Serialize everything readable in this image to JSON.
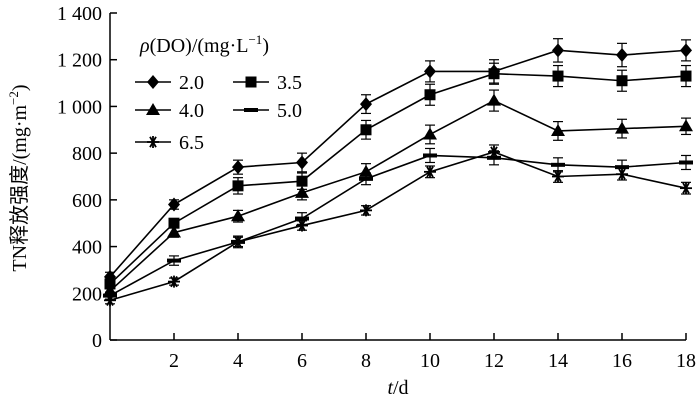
{
  "chart_data": {
    "type": "line",
    "xlabel_var": "t",
    "xlabel_unit": "/d",
    "ylabel": "TN释放强度/(mg·m",
    "ylabel_sup": "−2",
    "ylabel_close": ")",
    "legend_title_var": "ρ",
    "legend_title_rest": "(DO)/(mg·L",
    "legend_title_sup": "−1",
    "legend_title_close": ")",
    "xlim": [
      0,
      18
    ],
    "ylim": [
      0,
      1400
    ],
    "x_ticks": [
      2,
      4,
      6,
      8,
      10,
      12,
      14,
      16,
      18
    ],
    "y_ticks": [
      0,
      200,
      400,
      600,
      800,
      1000,
      1200,
      1400
    ],
    "y_tick_labels": [
      "0",
      "200",
      "400",
      "600",
      "800",
      "1 000",
      "1 200",
      "1 400"
    ],
    "x": [
      0,
      2,
      4,
      6,
      8,
      10,
      12,
      14,
      16,
      18
    ],
    "series": [
      {
        "name": "2.0",
        "marker": "diamond",
        "values": [
          270,
          580,
          740,
          760,
          1010,
          1150,
          1150,
          1240,
          1220,
          1240
        ],
        "errors": [
          20,
          20,
          30,
          40,
          40,
          45,
          50,
          50,
          50,
          45
        ]
      },
      {
        "name": "3.5",
        "marker": "square",
        "values": [
          240,
          500,
          660,
          680,
          900,
          1050,
          1140,
          1130,
          1110,
          1130
        ],
        "errors": [
          20,
          20,
          35,
          35,
          40,
          45,
          45,
          45,
          45,
          45
        ]
      },
      {
        "name": "4.0",
        "marker": "triangle",
        "values": [
          210,
          460,
          530,
          630,
          720,
          880,
          1025,
          895,
          905,
          915
        ],
        "errors": [
          20,
          20,
          25,
          30,
          35,
          40,
          45,
          40,
          40,
          35
        ]
      },
      {
        "name": "5.0",
        "marker": "dash",
        "values": [
          190,
          340,
          420,
          520,
          690,
          790,
          780,
          750,
          740,
          760
        ],
        "errors": [
          15,
          20,
          25,
          25,
          25,
          30,
          30,
          30,
          30,
          30
        ]
      },
      {
        "name": "6.5",
        "marker": "star",
        "values": [
          170,
          250,
          420,
          490,
          555,
          720,
          805,
          700,
          710,
          650
        ],
        "errors": [
          15,
          15,
          20,
          20,
          20,
          25,
          30,
          25,
          25,
          25
        ]
      }
    ],
    "grid": false,
    "legend_position": "top-left"
  }
}
